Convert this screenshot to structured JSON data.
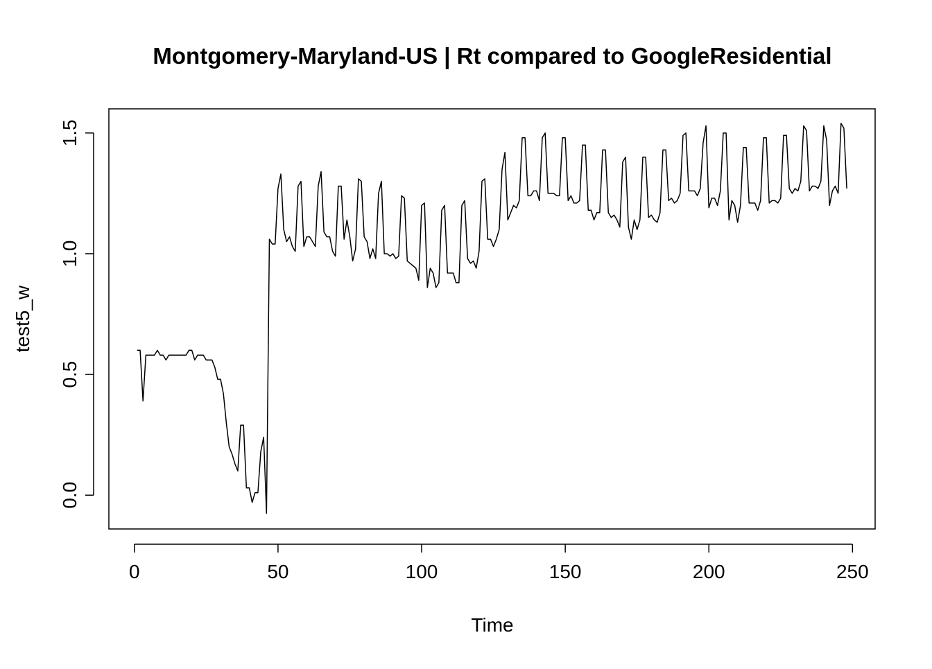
{
  "chart_data": {
    "type": "line",
    "title": "Montgomery-Maryland-US | Rt compared to GoogleResidential",
    "xlabel": "Time",
    "ylabel": "test5_w",
    "x": [
      1,
      2,
      3,
      4,
      5,
      6,
      7,
      8,
      9,
      10,
      11,
      12,
      13,
      14,
      15,
      16,
      17,
      18,
      19,
      20,
      21,
      22,
      23,
      24,
      25,
      26,
      27,
      28,
      29,
      30,
      31,
      32,
      33,
      34,
      35,
      36,
      37,
      38,
      39,
      40,
      41,
      42,
      43,
      44,
      45,
      46,
      47,
      48,
      49,
      50,
      51,
      52,
      53,
      54,
      55,
      56,
      57,
      58,
      59,
      60,
      61,
      62,
      63,
      64,
      65,
      66,
      67,
      68,
      69,
      70,
      71,
      72,
      73,
      74,
      75,
      76,
      77,
      78,
      79,
      80,
      81,
      82,
      83,
      84,
      85,
      86,
      87,
      88,
      89,
      90,
      91,
      92,
      93,
      94,
      95,
      96,
      97,
      98,
      99,
      100,
      101,
      102,
      103,
      104,
      105,
      106,
      107,
      108,
      109,
      110,
      111,
      112,
      113,
      114,
      115,
      116,
      117,
      118,
      119,
      120,
      121,
      122,
      123,
      124,
      125,
      126,
      127,
      128,
      129,
      130,
      131,
      132,
      133,
      134,
      135,
      136,
      137,
      138,
      139,
      140,
      141,
      142,
      143,
      144,
      145,
      146,
      147,
      148,
      149,
      150,
      151,
      152,
      153,
      154,
      155,
      156,
      157,
      158,
      159,
      160,
      161,
      162,
      163,
      164,
      165,
      166,
      167,
      168,
      169,
      170,
      171,
      172,
      173,
      174,
      175,
      176,
      177,
      178,
      179,
      180,
      181,
      182,
      183,
      184,
      185,
      186,
      187,
      188,
      189,
      190,
      191,
      192,
      193,
      194,
      195,
      196,
      197,
      198,
      199,
      200,
      201,
      202,
      203,
      204,
      205,
      206,
      207,
      208,
      209,
      210,
      211,
      212,
      213,
      214,
      215,
      216,
      217,
      218,
      219,
      220,
      221,
      222,
      223,
      224,
      225,
      226,
      227,
      228,
      229,
      230,
      231,
      232,
      233,
      234,
      235,
      236,
      237,
      238,
      239,
      240,
      241,
      242,
      243,
      244,
      245,
      246,
      247,
      248
    ],
    "values": [
      0.6,
      0.6,
      0.39,
      0.58,
      0.58,
      0.58,
      0.58,
      0.6,
      0.58,
      0.58,
      0.56,
      0.58,
      0.58,
      0.58,
      0.58,
      0.58,
      0.58,
      0.58,
      0.6,
      0.6,
      0.56,
      0.58,
      0.58,
      0.58,
      0.56,
      0.56,
      0.56,
      0.53,
      0.48,
      0.48,
      0.42,
      0.3,
      0.2,
      0.17,
      0.13,
      0.1,
      0.29,
      0.29,
      0.03,
      0.03,
      -0.03,
      0.01,
      0.01,
      0.18,
      0.24,
      -0.075,
      1.06,
      1.04,
      1.04,
      1.27,
      1.33,
      1.1,
      1.05,
      1.07,
      1.03,
      1.01,
      1.28,
      1.3,
      1.03,
      1.07,
      1.07,
      1.05,
      1.03,
      1.28,
      1.34,
      1.09,
      1.07,
      1.07,
      1.01,
      0.99,
      1.28,
      1.28,
      1.06,
      1.14,
      1.07,
      0.97,
      1.02,
      1.31,
      1.3,
      1.07,
      1.05,
      0.98,
      1.02,
      0.98,
      1.25,
      1.3,
      1.0,
      1.0,
      0.99,
      1.0,
      0.98,
      0.99,
      1.24,
      1.23,
      0.97,
      0.96,
      0.95,
      0.94,
      0.89,
      1.2,
      1.21,
      0.86,
      0.94,
      0.92,
      0.86,
      0.88,
      1.18,
      1.2,
      0.92,
      0.92,
      0.92,
      0.88,
      0.88,
      1.2,
      1.22,
      0.98,
      0.96,
      0.97,
      0.94,
      1.01,
      1.3,
      1.31,
      1.06,
      1.06,
      1.03,
      1.06,
      1.1,
      1.35,
      1.42,
      1.14,
      1.17,
      1.2,
      1.19,
      1.22,
      1.48,
      1.48,
      1.24,
      1.24,
      1.26,
      1.26,
      1.22,
      1.48,
      1.5,
      1.25,
      1.25,
      1.25,
      1.24,
      1.24,
      1.48,
      1.48,
      1.22,
      1.24,
      1.21,
      1.21,
      1.22,
      1.45,
      1.45,
      1.18,
      1.18,
      1.14,
      1.17,
      1.17,
      1.43,
      1.43,
      1.17,
      1.15,
      1.16,
      1.14,
      1.11,
      1.38,
      1.4,
      1.11,
      1.06,
      1.14,
      1.1,
      1.14,
      1.4,
      1.4,
      1.15,
      1.16,
      1.14,
      1.13,
      1.17,
      1.43,
      1.43,
      1.22,
      1.23,
      1.21,
      1.22,
      1.25,
      1.49,
      1.5,
      1.26,
      1.26,
      1.26,
      1.24,
      1.27,
      1.46,
      1.53,
      1.19,
      1.23,
      1.23,
      1.2,
      1.26,
      1.5,
      1.5,
      1.14,
      1.22,
      1.2,
      1.13,
      1.2,
      1.44,
      1.44,
      1.21,
      1.21,
      1.21,
      1.18,
      1.22,
      1.48,
      1.48,
      1.21,
      1.22,
      1.22,
      1.21,
      1.23,
      1.49,
      1.49,
      1.27,
      1.25,
      1.27,
      1.26,
      1.3,
      1.53,
      1.51,
      1.26,
      1.28,
      1.28,
      1.27,
      1.3,
      1.53,
      1.47,
      1.2,
      1.26,
      1.28,
      1.25,
      1.54,
      1.52,
      1.27
    ],
    "color": "#000000",
    "xlim": [
      -8.88,
      257.88
    ],
    "xticks": [
      0,
      50,
      100,
      150,
      200,
      250
    ],
    "ylim": [
      -0.14,
      1.6
    ],
    "yticks": [
      {
        "value": 0,
        "label": "0.0"
      },
      0.5,
      {
        "value": 1,
        "label": "1.0"
      },
      1.5
    ],
    "grid": false
  }
}
